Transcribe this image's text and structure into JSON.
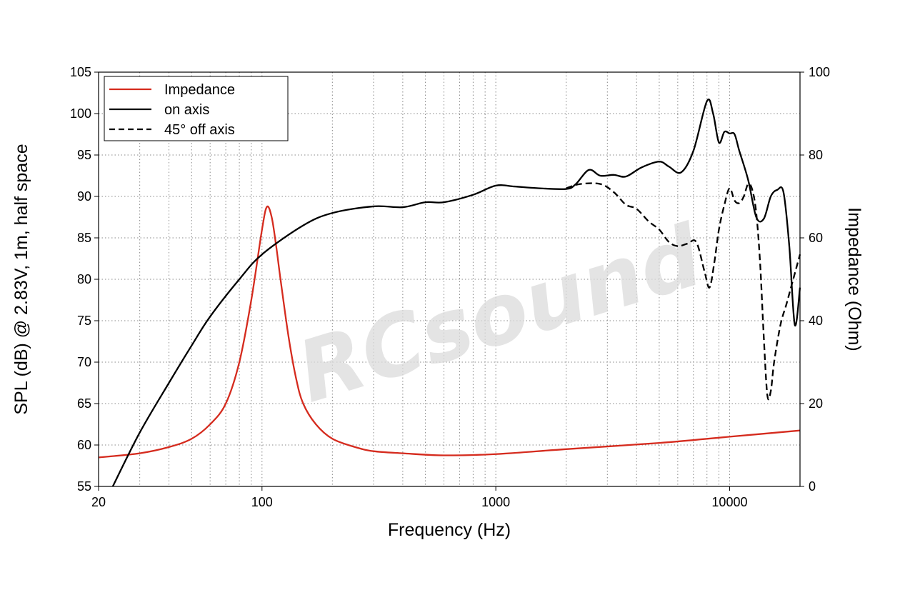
{
  "chart_data": {
    "type": "line",
    "title": "",
    "xlabel": "Frequency (Hz)",
    "ylabel": "SPL (dB) @ 2.83V, 1m, half space",
    "y2label": "Impedance (Ohm)",
    "xscale": "log",
    "xlim": [
      20,
      20000
    ],
    "ylim": [
      55,
      105
    ],
    "y2lim": [
      0,
      100
    ],
    "x_ticks": [
      20,
      100,
      1000,
      10000
    ],
    "x_tick_labels": [
      "20",
      "100",
      "1000",
      "10000"
    ],
    "y_ticks": [
      55,
      60,
      65,
      70,
      75,
      80,
      85,
      90,
      95,
      100,
      105
    ],
    "y_tick_labels": [
      "55",
      "60",
      "65",
      "70",
      "75",
      "80",
      "85",
      "90",
      "95",
      "100",
      "105"
    ],
    "y2_ticks": [
      0,
      20,
      40,
      60,
      80,
      100
    ],
    "y2_tick_labels": [
      "0",
      "20",
      "40",
      "60",
      "80",
      "100"
    ],
    "grid": true,
    "legend_position": "top-left",
    "watermark": "RCsound",
    "series": [
      {
        "name": "Impedance",
        "axis": "right",
        "color": "#d52b1e",
        "dash": "solid",
        "x": [
          20,
          30,
          40,
          50,
          60,
          70,
          80,
          90,
          100,
          105,
          110,
          115,
          120,
          130,
          140,
          150,
          170,
          200,
          250,
          300,
          400,
          600,
          1000,
          2000,
          5000,
          10000,
          20000
        ],
        "y": [
          7,
          8,
          9.5,
          11.5,
          15,
          20,
          30,
          45,
          62,
          67.5,
          65,
          58,
          50,
          36,
          26,
          20,
          15,
          11.5,
          9.5,
          8.5,
          8,
          7.5,
          7.8,
          9,
          10.5,
          12,
          13.5
        ]
      },
      {
        "name": "on axis",
        "axis": "left",
        "color": "#000000",
        "dash": "solid",
        "x": [
          23,
          30,
          40,
          50,
          60,
          80,
          100,
          150,
          200,
          300,
          400,
          500,
          600,
          800,
          1000,
          1200,
          1500,
          2000,
          2200,
          2500,
          2800,
          3200,
          3600,
          4200,
          5000,
          5500,
          6200,
          7000,
          8000,
          8500,
          9000,
          9500,
          10000,
          10500,
          11000,
          12000,
          13000,
          14000,
          15000,
          16000,
          17000,
          18000,
          19000,
          20000
        ],
        "y": [
          55,
          61.5,
          67.5,
          72,
          75.5,
          80,
          83,
          86.5,
          88,
          88.8,
          88.7,
          89.3,
          89.3,
          90.2,
          91.3,
          91.2,
          91,
          90.9,
          91.5,
          93.2,
          92.5,
          92.6,
          92.4,
          93.5,
          94.2,
          93.6,
          92.9,
          95.5,
          101.5,
          100,
          96.5,
          97.8,
          97.6,
          97.5,
          95.5,
          92,
          87.5,
          87.3,
          90,
          90.8,
          90.5,
          84,
          74.5,
          79
        ]
      },
      {
        "name": "45° off axis",
        "axis": "left",
        "color": "#000000",
        "dash": "dashed",
        "x": [
          2000,
          2300,
          2800,
          3200,
          3600,
          4000,
          4500,
          5000,
          5500,
          6000,
          6600,
          7200,
          7800,
          8200,
          8600,
          9000,
          9500,
          10000,
          10500,
          11000,
          11500,
          12000,
          12500,
          13000,
          13500,
          14000,
          14500,
          15000,
          15500,
          16500,
          17500,
          18500,
          20000
        ],
        "y": [
          91,
          91.5,
          91.5,
          90.5,
          89,
          88.5,
          87,
          86,
          84.5,
          84,
          84.3,
          84.5,
          81,
          79,
          82,
          86,
          89,
          91,
          89.5,
          89.2,
          90,
          91.5,
          90.8,
          88,
          82,
          73,
          66,
          66.5,
          70,
          74.5,
          77,
          79.5,
          83
        ]
      }
    ]
  }
}
